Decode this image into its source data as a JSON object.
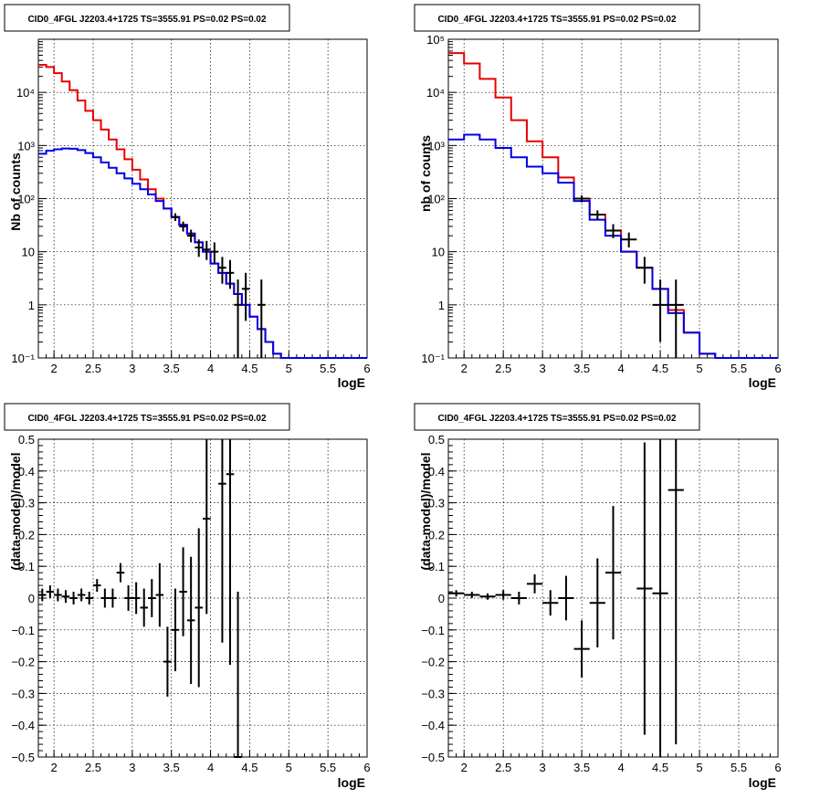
{
  "colors": {
    "data": "#000000",
    "model_total": "#e60000",
    "model_source": "#0000e6",
    "grid": "#000000"
  },
  "chart_data": [
    {
      "type": "line",
      "title": "CID0_4FGL J2203.4+1725 TS=3555.91 PS=0.02 PS=0.02",
      "xlabel": "logE",
      "ylabel": "Nb of counts",
      "xlim": [
        1.8,
        6
      ],
      "ylim": [
        0.1,
        100000
      ],
      "yscale": "log",
      "grid": true,
      "x_ticks": [
        2,
        2.5,
        3,
        3.5,
        4,
        4.5,
        5,
        5.5,
        6
      ],
      "x_tick_labels": [
        "2",
        "2.5",
        "3",
        "3.5",
        "4",
        "4.5",
        "5",
        "5.5",
        "6"
      ],
      "y_ticks": [
        0.1,
        1,
        10,
        100,
        1000,
        10000
      ],
      "y_tick_labels": [
        "10⁻¹",
        "1",
        "10",
        "10²",
        "10³",
        "10⁴"
      ],
      "bin_edges": [
        1.8,
        1.9,
        2.0,
        2.1,
        2.2,
        2.3,
        2.4,
        2.5,
        2.6,
        2.7,
        2.8,
        2.9,
        3.0,
        3.1,
        3.2,
        3.3,
        3.4,
        3.5,
        3.6,
        3.7,
        3.8,
        3.9,
        4.0,
        4.1,
        4.2,
        4.3,
        4.4,
        4.5,
        4.6,
        4.7,
        4.8,
        4.9,
        5.0,
        5.1,
        5.2,
        5.3,
        5.4,
        5.5,
        5.6,
        5.7,
        5.8,
        5.9,
        6.0
      ],
      "series": [
        {
          "color": "#e60000",
          "style": "step",
          "values": [
            33000,
            30000,
            23000,
            16000,
            11000,
            7000,
            4500,
            3000,
            2000,
            1300,
            850,
            550,
            350,
            230,
            150,
            100,
            65,
            45,
            32,
            22,
            15,
            10,
            6,
            4,
            2.5,
            1.6,
            1,
            0.6,
            0.35,
            0.2,
            0.12,
            0.1,
            0.1,
            0.1,
            0.1,
            0.1,
            0.1,
            0.1,
            0.1,
            0.1,
            0.1,
            0.1
          ]
        },
        {
          "color": "#0000e6",
          "style": "step",
          "values": [
            700,
            800,
            850,
            880,
            870,
            820,
            720,
            600,
            480,
            380,
            300,
            240,
            190,
            150,
            120,
            90,
            65,
            45,
            32,
            22,
            15,
            10,
            6,
            4,
            2.5,
            1.6,
            1,
            0.6,
            0.35,
            0.2,
            0.12,
            0.1,
            0.1,
            0.1,
            0.1,
            0.1,
            0.1,
            0.1,
            0.1,
            0.1,
            0.1,
            0.1
          ]
        },
        {
          "color": "#000000",
          "style": "errorbar",
          "points": [
            {
              "x": 3.55,
              "y": 45,
              "lo": 38,
              "hi": 53
            },
            {
              "x": 3.65,
              "y": 30,
              "lo": 24,
              "hi": 37
            },
            {
              "x": 3.75,
              "y": 20,
              "lo": 15,
              "hi": 26
            },
            {
              "x": 3.85,
              "y": 12,
              "lo": 8,
              "hi": 17
            },
            {
              "x": 3.95,
              "y": 11,
              "lo": 7,
              "hi": 16
            },
            {
              "x": 4.05,
              "y": 10,
              "lo": 6,
              "hi": 15
            },
            {
              "x": 4.15,
              "y": 5,
              "lo": 2.5,
              "hi": 8
            },
            {
              "x": 4.25,
              "y": 4,
              "lo": 2,
              "hi": 7
            },
            {
              "x": 4.35,
              "y": 1,
              "lo": 0.1,
              "hi": 3
            },
            {
              "x": 4.45,
              "y": 2,
              "lo": 0.5,
              "hi": 4
            },
            {
              "x": 4.65,
              "y": 1,
              "lo": 0.1,
              "hi": 3
            }
          ]
        }
      ]
    },
    {
      "type": "line",
      "title": "CID0_4FGL J2203.4+1725 TS=3555.91 PS=0.02 PS=0.02",
      "xlabel": "logE",
      "ylabel": "nb of counts",
      "xlim": [
        1.8,
        6
      ],
      "ylim": [
        0.1,
        100000
      ],
      "yscale": "log",
      "grid": true,
      "x_ticks": [
        2,
        2.5,
        3,
        3.5,
        4,
        4.5,
        5,
        5.5,
        6
      ],
      "x_tick_labels": [
        "2",
        "2.5",
        "3",
        "3.5",
        "4",
        "4.5",
        "5",
        "5.5",
        "6"
      ],
      "y_ticks": [
        0.1,
        1,
        10,
        100,
        1000,
        10000,
        100000
      ],
      "y_tick_labels": [
        "10⁻¹",
        "1",
        "10",
        "10²",
        "10³",
        "10⁴",
        "10⁵"
      ],
      "bin_edges": [
        1.8,
        2.0,
        2.2,
        2.4,
        2.6,
        2.8,
        3.0,
        3.2,
        3.4,
        3.6,
        3.8,
        4.0,
        4.2,
        4.4,
        4.6,
        4.8,
        5.0,
        5.2,
        5.4,
        5.6,
        5.8,
        6.0
      ],
      "series": [
        {
          "color": "#e60000",
          "style": "step",
          "values": [
            55000,
            35000,
            18000,
            8000,
            3000,
            1200,
            600,
            250,
            100,
            50,
            25,
            10,
            5,
            2,
            0.8,
            0.3,
            0.12,
            0.1,
            0.1,
            0.1,
            0.1
          ]
        },
        {
          "color": "#0000e6",
          "style": "step",
          "values": [
            1300,
            1600,
            1300,
            900,
            600,
            400,
            300,
            200,
            90,
            40,
            20,
            10,
            5,
            2,
            0.7,
            0.3,
            0.12,
            0.1,
            0.1,
            0.1,
            0.1
          ]
        },
        {
          "color": "#000000",
          "style": "errorbar",
          "points": [
            {
              "x": 3.5,
              "y": 100,
              "lo": 85,
              "hi": 115
            },
            {
              "x": 3.7,
              "y": 50,
              "lo": 40,
              "hi": 60
            },
            {
              "x": 3.9,
              "y": 25,
              "lo": 18,
              "hi": 33
            },
            {
              "x": 4.1,
              "y": 17,
              "lo": 12,
              "hi": 23
            },
            {
              "x": 4.3,
              "y": 5,
              "lo": 2.5,
              "hi": 8
            },
            {
              "x": 4.5,
              "y": 1,
              "lo": 0.2,
              "hi": 3
            },
            {
              "x": 4.7,
              "y": 1,
              "lo": 0.1,
              "hi": 3
            }
          ]
        }
      ]
    },
    {
      "type": "scatter",
      "title": "CID0_4FGL J2203.4+1725 TS=3555.91 PS=0.02 PS=0.02",
      "xlabel": "logE",
      "ylabel": "(data-model)/model",
      "xlim": [
        1.8,
        6
      ],
      "ylim": [
        -0.5,
        0.5
      ],
      "yscale": "linear",
      "grid": true,
      "x_ticks": [
        2,
        2.5,
        3,
        3.5,
        4,
        4.5,
        5,
        5.5,
        6
      ],
      "x_tick_labels": [
        "2",
        "2.5",
        "3",
        "3.5",
        "4",
        "4.5",
        "5",
        "5.5",
        "6"
      ],
      "y_ticks": [
        -0.5,
        -0.4,
        -0.3,
        -0.2,
        -0.1,
        0,
        0.1,
        0.2,
        0.3,
        0.4,
        0.5
      ],
      "y_tick_labels": [
        "−0.5",
        "−0.4",
        "−0.3",
        "−0.2",
        "−0.1",
        "0",
        "0.1",
        "0.2",
        "0.3",
        "0.4",
        "0.5"
      ],
      "xerr": 0.05,
      "points": [
        {
          "x": 1.85,
          "y": 0.01,
          "err": 0.02
        },
        {
          "x": 1.95,
          "y": 0.02,
          "err": 0.02
        },
        {
          "x": 2.05,
          "y": 0.01,
          "err": 0.02
        },
        {
          "x": 2.15,
          "y": 0.005,
          "err": 0.02
        },
        {
          "x": 2.25,
          "y": 0.0,
          "err": 0.02
        },
        {
          "x": 2.35,
          "y": 0.01,
          "err": 0.02
        },
        {
          "x": 2.45,
          "y": 0.0,
          "err": 0.02
        },
        {
          "x": 2.55,
          "y": 0.04,
          "err": 0.02
        },
        {
          "x": 2.65,
          "y": 0.0,
          "err": 0.03
        },
        {
          "x": 2.75,
          "y": 0.0,
          "err": 0.03
        },
        {
          "x": 2.85,
          "y": 0.08,
          "err": 0.03
        },
        {
          "x": 2.95,
          "y": 0.0,
          "err": 0.04
        },
        {
          "x": 3.05,
          "y": 0.0,
          "err": 0.05
        },
        {
          "x": 3.15,
          "y": -0.03,
          "err": 0.06
        },
        {
          "x": 3.25,
          "y": 0.0,
          "err": 0.06
        },
        {
          "x": 3.35,
          "y": 0.01,
          "err": 0.1
        },
        {
          "x": 3.45,
          "y": -0.2,
          "err": 0.11
        },
        {
          "x": 3.55,
          "y": -0.1,
          "err": 0.13
        },
        {
          "x": 3.65,
          "y": 0.02,
          "err": 0.14
        },
        {
          "x": 3.75,
          "y": -0.07,
          "err": 0.2
        },
        {
          "x": 3.85,
          "y": -0.03,
          "err": 0.25
        },
        {
          "x": 3.95,
          "y": 0.25,
          "err": 0.3
        },
        {
          "x": 4.15,
          "y": 0.36,
          "err": 0.5
        },
        {
          "x": 4.25,
          "y": 0.39,
          "err": 0.6
        },
        {
          "x": 4.35,
          "y": -0.5,
          "err": 0.52
        }
      ]
    },
    {
      "type": "scatter",
      "title": "CID0_4FGL J2203.4+1725 TS=3555.91 PS=0.02 PS=0.02",
      "xlabel": "logE",
      "ylabel": "(data-model)/model",
      "xlim": [
        1.8,
        6
      ],
      "ylim": [
        -0.5,
        0.5
      ],
      "yscale": "linear",
      "grid": true,
      "x_ticks": [
        2,
        2.5,
        3,
        3.5,
        4,
        4.5,
        5,
        5.5,
        6
      ],
      "x_tick_labels": [
        "2",
        "2.5",
        "3",
        "3.5",
        "4",
        "4.5",
        "5",
        "5.5",
        "6"
      ],
      "y_ticks": [
        -0.5,
        -0.4,
        -0.3,
        -0.2,
        -0.1,
        0,
        0.1,
        0.2,
        0.3,
        0.4,
        0.5
      ],
      "y_tick_labels": [
        "−0.5",
        "−0.4",
        "−0.3",
        "−0.2",
        "−0.1",
        "0",
        "0.1",
        "0.2",
        "0.3",
        "0.4",
        "0.5"
      ],
      "xerr": 0.1,
      "points": [
        {
          "x": 1.9,
          "y": 0.015,
          "err": 0.01
        },
        {
          "x": 2.1,
          "y": 0.01,
          "err": 0.01
        },
        {
          "x": 2.3,
          "y": 0.005,
          "err": 0.01
        },
        {
          "x": 2.5,
          "y": 0.01,
          "err": 0.015
        },
        {
          "x": 2.7,
          "y": 0.0,
          "err": 0.02
        },
        {
          "x": 2.9,
          "y": 0.045,
          "err": 0.03
        },
        {
          "x": 3.1,
          "y": -0.015,
          "err": 0.04
        },
        {
          "x": 3.3,
          "y": 0.0,
          "err": 0.07
        },
        {
          "x": 3.5,
          "y": -0.16,
          "err": 0.09
        },
        {
          "x": 3.7,
          "y": -0.015,
          "err": 0.14
        },
        {
          "x": 3.9,
          "y": 0.08,
          "err": 0.21
        },
        {
          "x": 4.3,
          "y": 0.03,
          "err": 0.46
        },
        {
          "x": 4.5,
          "y": 0.015,
          "err": 0.6
        },
        {
          "x": 4.7,
          "y": 0.34,
          "err": 0.8
        }
      ]
    }
  ]
}
